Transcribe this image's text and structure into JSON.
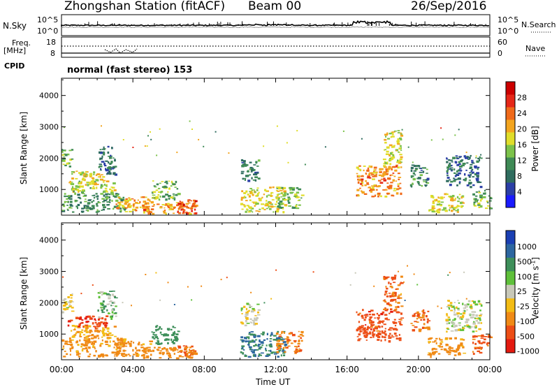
{
  "header": {
    "title": "Zhongshan Station (fitACF)",
    "beam": "Beam 00",
    "date": "26/Sep/2016",
    "cpid_label": "CPID",
    "cpid_text": "normal (fast stereo) 153"
  },
  "top_panels": {
    "nsky": {
      "left_label": "N.Sky",
      "left_ticks": [
        "10^5",
        "10^0"
      ],
      "right_ticks": [
        "10^5",
        "10^0"
      ],
      "right_label": "N.Search"
    },
    "freq": {
      "left_label_1": "Freq.",
      "left_label_2": "[MHz]",
      "left_ticks": [
        "18",
        "8"
      ],
      "right_ticks": [
        "60",
        "0"
      ],
      "right_label": "Nave"
    }
  },
  "colors": {
    "power_scale": [
      "#1a1aff",
      "#2b3fa6",
      "#2f6c5f",
      "#3f8a56",
      "#7cc24a",
      "#e0dd2a",
      "#f3a51f",
      "#f06a1a",
      "#e52718",
      "#cc0000"
    ],
    "velocity_scale": [
      "#1a3fb3",
      "#2d66a0",
      "#3e8f5a",
      "#5fc03a",
      "#c8c8b8",
      "#f3bc15",
      "#f08a16",
      "#ed4e16",
      "#e41a10"
    ],
    "ground_scatter": "#c8c8b8"
  },
  "chart_data": [
    {
      "type": "heatmap",
      "name": "power",
      "x": {
        "label": "Time UT",
        "range": [
          0,
          24
        ],
        "unit": "hours",
        "tick_labels": [
          "00:00",
          "04:00",
          "08:00",
          "12:00",
          "16:00",
          "20:00",
          "00:00"
        ]
      },
      "y": {
        "label": "Slant Range [km]",
        "range": [
          180,
          4550
        ],
        "ticks": [
          1000,
          2000,
          3000,
          4000
        ],
        "tick_labels": [
          "1000",
          "2000",
          "3000",
          "4000"
        ]
      },
      "colorbar": {
        "label": "Power [dB]",
        "range": [
          0,
          32
        ],
        "ticks": [
          4,
          8,
          12,
          16,
          20,
          24,
          28
        ],
        "tick_labels": [
          "4",
          "8",
          "12",
          "16",
          "20",
          "24",
          "28"
        ]
      },
      "echo_regions": [
        {
          "t": [
            0.0,
            0.6
          ],
          "r": [
            1700,
            2300
          ],
          "v": 14
        },
        {
          "t": [
            0.3,
            2.5
          ],
          "r": [
            1200,
            1600
          ],
          "v": 18
        },
        {
          "t": [
            0.5,
            3.0
          ],
          "r": [
            900,
            1300
          ],
          "v": 16
        },
        {
          "t": [
            0.0,
            3.5
          ],
          "r": [
            300,
            900
          ],
          "v": 11
        },
        {
          "t": [
            2.0,
            3.0
          ],
          "r": [
            1500,
            2400
          ],
          "v": 8
        },
        {
          "t": [
            3.0,
            5.0
          ],
          "r": [
            300,
            800
          ],
          "v": 20
        },
        {
          "t": [
            4.5,
            7.5
          ],
          "r": [
            250,
            600
          ],
          "v": 22
        },
        {
          "t": [
            5.0,
            6.5
          ],
          "r": [
            700,
            1300
          ],
          "v": 14
        },
        {
          "t": [
            6.5,
            7.5
          ],
          "r": [
            250,
            700
          ],
          "v": 26
        },
        {
          "t": [
            10.0,
            11.0
          ],
          "r": [
            1300,
            2000
          ],
          "v": 9
        },
        {
          "t": [
            10.0,
            12.5
          ],
          "r": [
            300,
            1100
          ],
          "v": 18
        },
        {
          "t": [
            12.0,
            13.5
          ],
          "r": [
            400,
            1100
          ],
          "v": 14
        },
        {
          "t": [
            16.5,
            19.0
          ],
          "r": [
            800,
            1800
          ],
          "v": 22
        },
        {
          "t": [
            18.0,
            19.0
          ],
          "r": [
            1800,
            2900
          ],
          "v": 18
        },
        {
          "t": [
            19.5,
            20.5
          ],
          "r": [
            1100,
            1800
          ],
          "v": 10
        },
        {
          "t": [
            20.5,
            22.5
          ],
          "r": [
            300,
            900
          ],
          "v": 18
        },
        {
          "t": [
            21.5,
            23.5
          ],
          "r": [
            1100,
            2100
          ],
          "v": 8
        },
        {
          "t": [
            23.0,
            24.0
          ],
          "r": [
            400,
            1000
          ],
          "v": 14
        }
      ]
    },
    {
      "type": "heatmap",
      "name": "velocity",
      "x": {
        "label": "Time UT",
        "range": [
          0,
          24
        ],
        "unit": "hours",
        "tick_labels": [
          "00:00",
          "04:00",
          "08:00",
          "12:00",
          "16:00",
          "20:00",
          "00:00"
        ]
      },
      "y": {
        "label": "Slant Range [km]",
        "range": [
          180,
          4550
        ],
        "ticks": [
          1000,
          2000,
          3000,
          4000
        ],
        "tick_labels": [
          "1000",
          "2000",
          "3000",
          "4000"
        ]
      },
      "colorbar": {
        "label": "Velocity [m s^-1]",
        "tick_labels": [
          "1000",
          "500",
          "100",
          "25",
          "-25",
          "-100",
          "-500",
          "-1000"
        ]
      },
      "echo_regions": [
        {
          "t": [
            0.0,
            0.6
          ],
          "r": [
            1700,
            2300
          ],
          "v": -25
        },
        {
          "t": [
            0.3,
            2.5
          ],
          "r": [
            1200,
            1600
          ],
          "v": -600
        },
        {
          "t": [
            0.5,
            3.0
          ],
          "r": [
            900,
            1300
          ],
          "v": -100
        },
        {
          "t": [
            0.0,
            3.5
          ],
          "r": [
            300,
            900
          ],
          "v": -150
        },
        {
          "t": [
            2.0,
            3.0
          ],
          "r": [
            1500,
            2400
          ],
          "v": 40
        },
        {
          "t": [
            3.0,
            5.0
          ],
          "r": [
            300,
            800
          ],
          "v": -150
        },
        {
          "t": [
            4.5,
            7.5
          ],
          "r": [
            250,
            600
          ],
          "v": -200
        },
        {
          "t": [
            5.0,
            6.5
          ],
          "r": [
            700,
            1300
          ],
          "v": 150
        },
        {
          "t": [
            6.5,
            7.5
          ],
          "r": [
            250,
            700
          ],
          "v": -300
        },
        {
          "t": [
            10.0,
            11.0
          ],
          "r": [
            1300,
            2000
          ],
          "v": 0
        },
        {
          "t": [
            10.0,
            12.5
          ],
          "r": [
            300,
            1100
          ],
          "v": 300
        },
        {
          "t": [
            12.0,
            13.5
          ],
          "r": [
            400,
            1100
          ],
          "v": -250
        },
        {
          "t": [
            16.5,
            19.0
          ],
          "r": [
            800,
            1800
          ],
          "v": -500
        },
        {
          "t": [
            18.0,
            19.0
          ],
          "r": [
            1800,
            2900
          ],
          "v": -300
        },
        {
          "t": [
            19.5,
            20.5
          ],
          "r": [
            1100,
            1800
          ],
          "v": -300
        },
        {
          "t": [
            20.5,
            22.5
          ],
          "r": [
            300,
            900
          ],
          "v": -150
        },
        {
          "t": [
            21.5,
            23.5
          ],
          "r": [
            1100,
            2100
          ],
          "v": 0
        },
        {
          "t": [
            23.0,
            24.0
          ],
          "r": [
            400,
            1000
          ],
          "v": -400
        }
      ]
    }
  ]
}
